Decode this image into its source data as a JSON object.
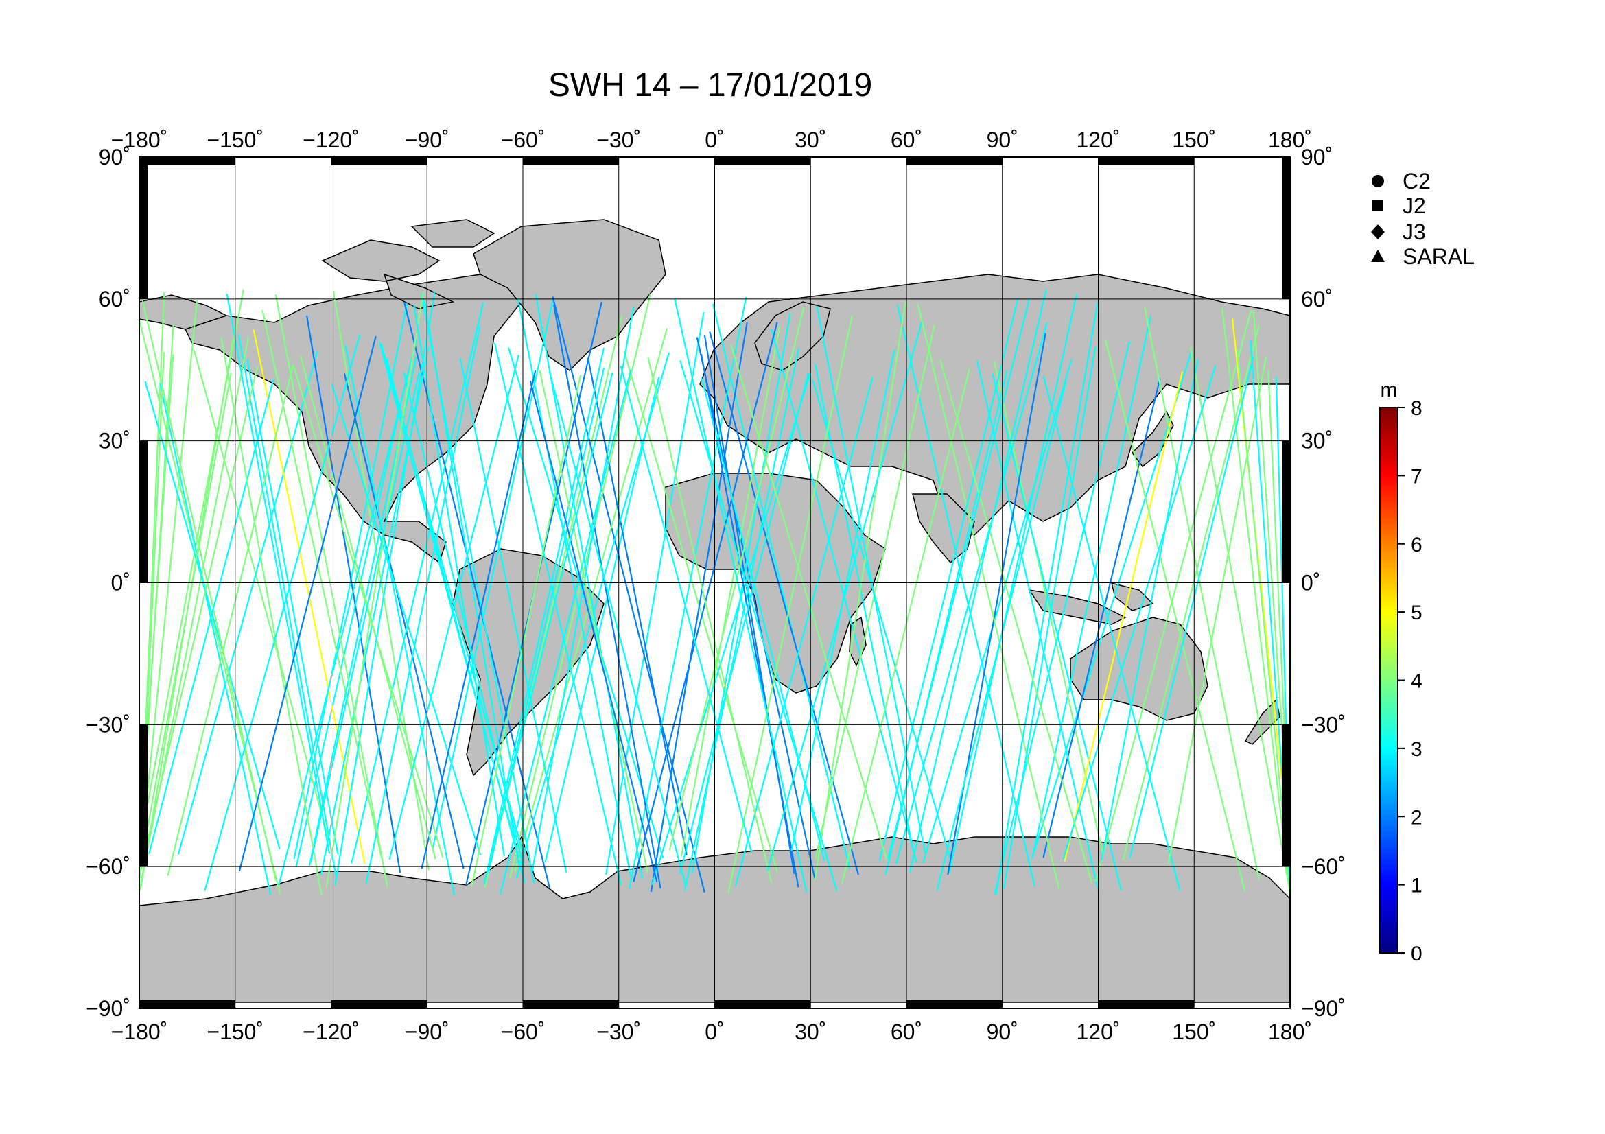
{
  "title": "SWH 14 – 17/01/2019",
  "x_ticks": [
    "−180˚",
    "−150˚",
    "−120˚",
    "−90˚",
    "−60˚",
    "−30˚",
    "0˚",
    "30˚",
    "60˚",
    "90˚",
    "120˚",
    "150˚",
    "180˚"
  ],
  "y_ticks_left": [
    "90˚",
    "60˚",
    "30˚",
    "0˚",
    "−30˚",
    "−60˚",
    "−90˚"
  ],
  "y_ticks_right": [
    "90˚",
    "60˚",
    "30˚",
    "0˚",
    "−30˚",
    "−60˚",
    "−90˚"
  ],
  "legend": [
    {
      "label": "C2",
      "symbol": "circle"
    },
    {
      "label": "J2",
      "symbol": "square"
    },
    {
      "label": "J3",
      "symbol": "diamond"
    },
    {
      "label": "SARAL",
      "symbol": "triangle"
    }
  ],
  "colorbar": {
    "unit": "m",
    "ticks": [
      "0",
      "1",
      "2",
      "3",
      "4",
      "5",
      "6",
      "7",
      "8"
    ],
    "range": [
      0,
      8
    ],
    "palette": [
      "#00007f",
      "#0000ff",
      "#007fff",
      "#00ffff",
      "#7fff7f",
      "#ffff00",
      "#ff7f00",
      "#ff0000",
      "#7f0000"
    ]
  },
  "colors": {
    "land": "#bebebe",
    "ocean": "#ffffff",
    "frame": "#000000",
    "grid": "#000000"
  },
  "chart_data": {
    "type": "map",
    "extent": {
      "lon": [
        -180,
        180
      ],
      "lat": [
        -90,
        90
      ]
    },
    "grid_lon_step": 30,
    "grid_lat_step": 30,
    "variable": "SWH",
    "units": "m",
    "date": "17/01/2019"
  }
}
